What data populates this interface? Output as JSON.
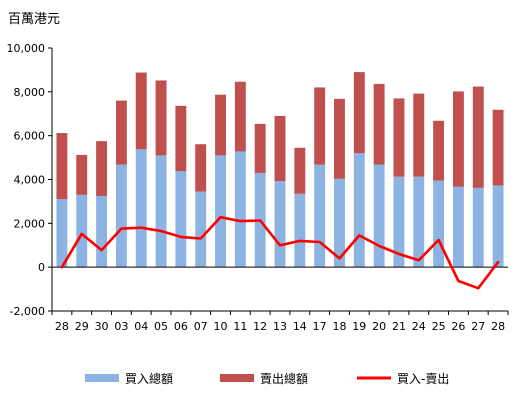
{
  "chart_data": {
    "type": "bar",
    "unit_label": "百萬港元",
    "categories": [
      "28",
      "29",
      "30",
      "03",
      "04",
      "05",
      "06",
      "07",
      "10",
      "11",
      "12",
      "13",
      "14",
      "17",
      "18",
      "19",
      "20",
      "21",
      "24",
      "25",
      "26",
      "27",
      "28"
    ],
    "ylim": [
      -2000,
      10000
    ],
    "yticks": [
      -2000,
      0,
      2000,
      4000,
      6000,
      8000,
      10000
    ],
    "ytick_labels": [
      "-2,000",
      "0",
      "2,000",
      "4,000",
      "6,000",
      "8,000",
      "10,000"
    ],
    "grid": false,
    "legend_position": "bottom",
    "stacked": true,
    "series": [
      {
        "name": "買入總額",
        "kind": "bar",
        "color": "#8db3e2",
        "values": [
          3100,
          3300,
          3250,
          4680,
          5380,
          5100,
          4380,
          3450,
          5100,
          5280,
          4300,
          3930,
          3350,
          4680,
          4030,
          5200,
          4680,
          4130,
          4130,
          3950,
          3670,
          3620,
          3730
        ]
      },
      {
        "name": "賣出總額",
        "kind": "bar",
        "color": "#c0504d",
        "values": [
          3020,
          1820,
          2500,
          2920,
          3500,
          3420,
          2980,
          2160,
          2770,
          3180,
          2240,
          2970,
          2100,
          3520,
          3650,
          3700,
          3680,
          3570,
          3790,
          2730,
          4350,
          4620,
          3450
        ]
      },
      {
        "name": "買入-賣出",
        "kind": "line",
        "color": "#ff0000",
        "values": [
          0,
          1520,
          780,
          1760,
          1800,
          1650,
          1380,
          1310,
          2280,
          2100,
          2130,
          1000,
          1200,
          1150,
          400,
          1450,
          970,
          600,
          320,
          1240,
          -630,
          -960,
          230
        ]
      }
    ]
  }
}
